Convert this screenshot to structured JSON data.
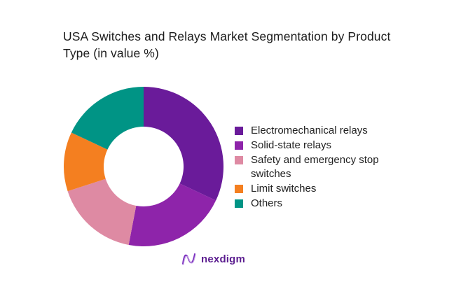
{
  "title": "USA Switches and Relays Market Segmentation by Product Type (in value %)",
  "chart_data": {
    "type": "pie",
    "variant": "donut",
    "title": "USA Switches and Relays Market Segmentation by Product Type (in value %)",
    "categories": [
      "Electromechanical relays",
      "Solid-state relays",
      "Safety and emergency stop switches",
      "Limit switches",
      "Others"
    ],
    "values": [
      32,
      21,
      17,
      12,
      18
    ],
    "colors": [
      "#6A1B9A",
      "#8E24AA",
      "#DE8AA3",
      "#F47F20",
      "#009485"
    ],
    "start_angle_deg": 0,
    "direction": "clockwise",
    "legend_position": "right",
    "data_labels": false
  },
  "legend": [
    {
      "label": "Electromechanical relays",
      "color": "#6A1B9A"
    },
    {
      "label": "Solid-state relays",
      "color": "#8E24AA"
    },
    {
      "label": "Safety and emergency stop switches",
      "color": "#DE8AA3"
    },
    {
      "label": "Limit switches",
      "color": "#F47F20"
    },
    {
      "label": "Others",
      "color": "#009485"
    }
  ],
  "logo": {
    "text": "nexdigm",
    "icon": "nexdigm-wave-icon"
  }
}
